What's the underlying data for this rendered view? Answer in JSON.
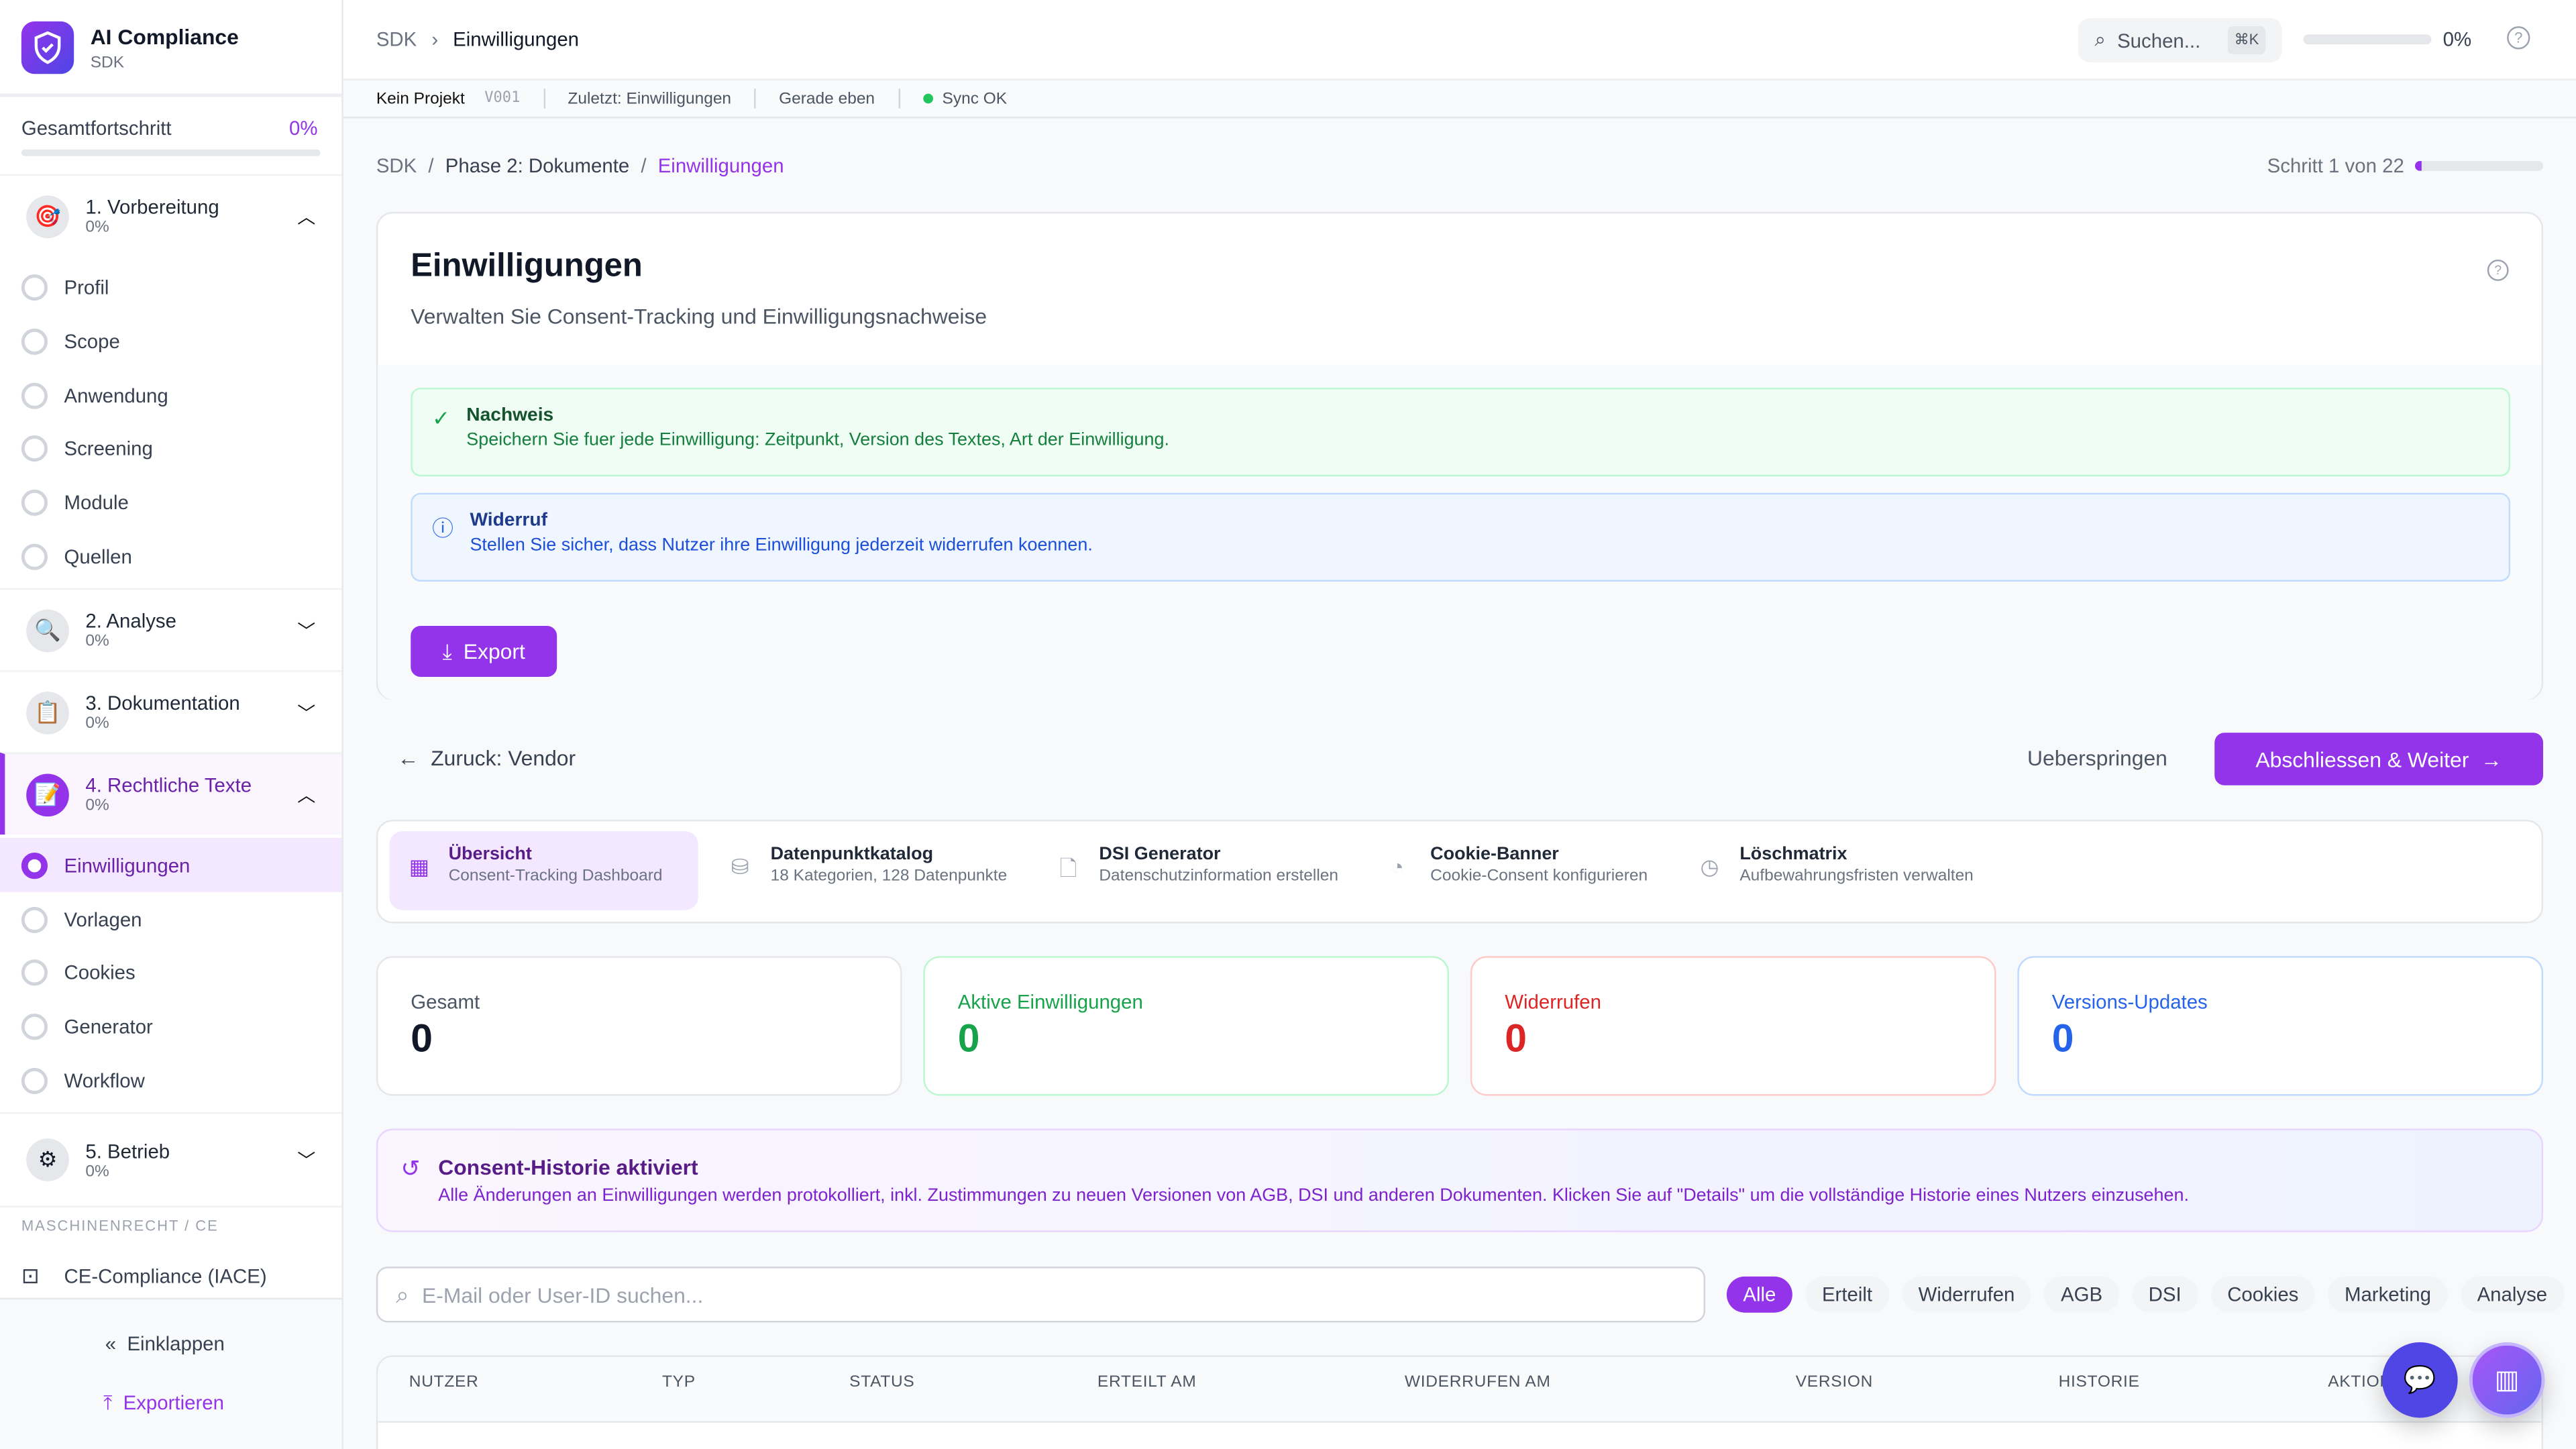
{
  "app": {
    "title": "AI Compliance",
    "subtitle": "SDK"
  },
  "sidebar": {
    "progress_label": "Gesamtfortschritt",
    "progress_value": "0%",
    "progress_fraction": 0,
    "sections": [
      {
        "label": "1. Vorbereitung",
        "progress": "0%",
        "icon": "target-icon",
        "expanded": true,
        "items": [
          "Profil",
          "Scope",
          "Anwendung",
          "Screening",
          "Module",
          "Quellen"
        ]
      },
      {
        "label": "2. Analyse",
        "progress": "0%",
        "icon": "magnifier-icon",
        "expanded": false
      },
      {
        "label": "3. Dokumentation",
        "progress": "0%",
        "icon": "clipboard-icon",
        "expanded": false
      },
      {
        "label": "4. Rechtliche Texte",
        "progress": "0%",
        "icon": "memo-icon",
        "expanded": true,
        "items": [
          "Einwilligungen",
          "Vorlagen",
          "Cookies",
          "Generator",
          "Workflow"
        ]
      },
      {
        "label": "5. Betrieb",
        "progress": "0%",
        "icon": "gear-icon",
        "expanded": false
      }
    ],
    "group_label": "MASCHINENRECHT / CE",
    "ce_item": "CE-Compliance (IACE)",
    "collapse": "Einklappen",
    "export": "Exportieren"
  },
  "header": {
    "breadcrumb": [
      "SDK",
      "Einwilligungen"
    ],
    "search_placeholder": "Suchen...",
    "shortcut": "⌘K",
    "progress": "0%",
    "progress_fraction": 0
  },
  "subbar": {
    "project": "Kein Projekt",
    "version": "V001",
    "last": "Zuletzt: Einwilligungen",
    "time": "Gerade eben",
    "sync": "Sync OK",
    "sync_color": "#22c55e"
  },
  "crumbs": {
    "items": [
      "SDK",
      "Phase 2: Dokumente",
      "Einwilligungen"
    ],
    "step": "Schritt 1 von 22",
    "step_fraction": 0.045
  },
  "page": {
    "title": "Einwilligungen",
    "subtitle": "Verwalten Sie Consent-Tracking und Einwilligungsnachweise",
    "alerts": [
      {
        "title": "Nachweis",
        "text": "Speichern Sie fuer jede Einwilligung: Zeitpunkt, Version des Textes, Art der Einwilligung."
      },
      {
        "title": "Widerruf",
        "text": "Stellen Sie sicher, dass Nutzer ihre Einwilligung jederzeit widerrufen koennen."
      }
    ],
    "export": "Export"
  },
  "nav": {
    "back": "Zuruck: Vendor",
    "skip": "Ueberspringen",
    "next": "Abschliessen & Weiter"
  },
  "tabs": [
    {
      "title": "Übersicht",
      "sub": "Consent-Tracking Dashboard",
      "icon": "grid-icon"
    },
    {
      "title": "Datenpunktkatalog",
      "sub": "18 Kategorien, 128 Datenpunkte",
      "icon": "database-icon"
    },
    {
      "title": "DSI Generator",
      "sub": "Datenschutzinformation erstellen",
      "icon": "document-icon"
    },
    {
      "title": "Cookie-Banner",
      "sub": "Cookie-Consent konfigurieren",
      "icon": "cookie-icon"
    },
    {
      "title": "Löschmatrix",
      "sub": "Aufbewahrungsfristen verwalten",
      "icon": "clock-icon"
    }
  ],
  "stats": [
    {
      "label": "Gesamt",
      "value": "0",
      "color": "#111827"
    },
    {
      "label": "Aktive Einwilligungen",
      "value": "0",
      "color": "#16a34a"
    },
    {
      "label": "Widerrufen",
      "value": "0",
      "color": "#dc2626"
    },
    {
      "label": "Versions-Updates",
      "value": "0",
      "color": "#2563eb"
    }
  ],
  "history": {
    "title": "Consent-Historie aktiviert",
    "text": "Alle Änderungen an Einwilligungen werden protokolliert, inkl. Zustimmungen zu neuen Versionen von AGB, DSI und anderen Dokumenten. Klicken Sie auf \"Details\" um die vollständige Historie eines Nutzers einzusehen."
  },
  "filter": {
    "placeholder": "E-Mail oder User-ID suchen...",
    "chips": [
      "Alle",
      "Erteilt",
      "Widerrufen",
      "AGB",
      "DSI",
      "Cookies",
      "Marketing",
      "Analyse"
    ]
  },
  "table": {
    "columns": [
      "NUTZER",
      "TYP",
      "STATUS",
      "ERTEILT AM",
      "WIDERRUFEN AM",
      "VERSION",
      "HISTORIE",
      "AKTIONEN"
    ]
  },
  "colors": {
    "accent": "#9333ea"
  }
}
